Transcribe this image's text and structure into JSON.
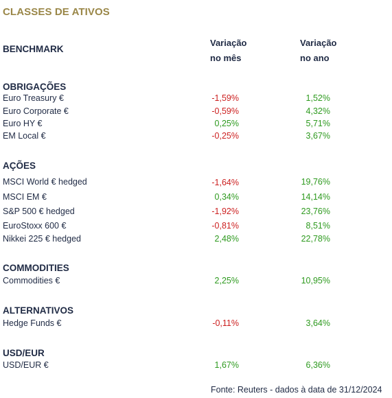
{
  "title": "CLASSES DE ATIVOS",
  "header": {
    "benchmark": "BENCHMARK",
    "col_month_line1": "Variação",
    "col_month_line2": "no mês",
    "col_year_line1": "Variação",
    "col_year_line2": "no ano"
  },
  "colors": {
    "title": "#9a8748",
    "negative": "#cc1f1f",
    "positive": "#2e9a1f",
    "text": "#1f2a44"
  },
  "sections": [
    {
      "name": "OBRIGAÇÕES",
      "rows": [
        {
          "label": "Euro Treasury €",
          "month": "-1,59%",
          "year": "1,52%"
        },
        {
          "label": "Euro Corporate €",
          "month": "-0,59%",
          "year": "4,32%"
        },
        {
          "label": "Euro HY €",
          "month": "0,25%",
          "year": "5,71%"
        },
        {
          "label": "EM Local €",
          "month": "-0,25%",
          "year": "3,67%"
        }
      ]
    },
    {
      "name": "AÇÕES",
      "rows": [
        {
          "label": "MSCI World € hedged",
          "month": "-1,64%",
          "year": "19,76%"
        },
        {
          "label": "MSCI EM €",
          "month": "0,34%",
          "year": "14,14%"
        },
        {
          "label": "S&P 500 € hedged",
          "month": "-1,92%",
          "year": "23,76%"
        },
        {
          "label": "EuroStoxx 600 €",
          "month": "-0,81%",
          "year": "8,51%"
        },
        {
          "label": "Nikkei 225 € hedged",
          "month": "2,48%",
          "year": "22,78%"
        }
      ]
    },
    {
      "name": "COMMODITIES",
      "rows": [
        {
          "label": "Commodities €",
          "month": "2,25%",
          "year": "10,95%"
        }
      ]
    },
    {
      "name": "ALTERNATIVOS",
      "rows": [
        {
          "label": "Hedge Funds €",
          "month": "-0,11%",
          "year": "3,64%"
        }
      ]
    },
    {
      "name": "USD/EUR",
      "rows": [
        {
          "label": "USD/EUR €",
          "month": "1,67%",
          "year": "6,36%"
        }
      ]
    }
  ],
  "source": "Fonte: Reuters - dados à data de 31/12/2024"
}
